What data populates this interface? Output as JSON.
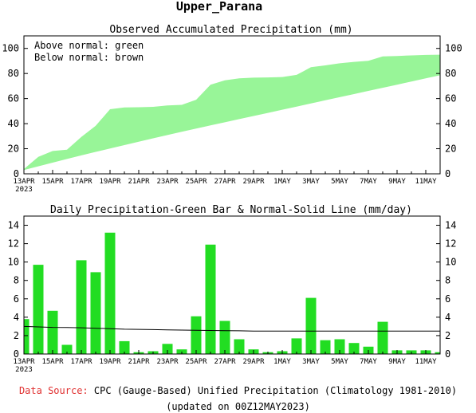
{
  "page_title": "Upper_Parana",
  "footer": {
    "source_label": "Data Source:",
    "source_text": "CPC (Gauge-Based) Unified Precipitation (Climatology 1981-2010)",
    "updated": "(updated on 00Z12MAY2023)"
  },
  "colors": {
    "green_fill": "#98f598",
    "bar_green": "#22dd22",
    "source_label": "#e03030"
  },
  "chart_data": [
    {
      "type": "area",
      "title": "Observed Accumulated Precipitation (mm)",
      "legend": [
        "Above normal: green",
        "Below normal: brown"
      ],
      "legend_position": "top-left",
      "x_tick_labels": [
        "13APR",
        "15APR",
        "17APR",
        "19APR",
        "21APR",
        "23APR",
        "25APR",
        "27APR",
        "29APR",
        "1MAY",
        "3MAY",
        "5MAY",
        "7MAY",
        "9MAY",
        "11MAY"
      ],
      "x_start_year_label": "2023",
      "days": [
        "13APR",
        "14APR",
        "15APR",
        "16APR",
        "17APR",
        "18APR",
        "19APR",
        "20APR",
        "21APR",
        "22APR",
        "23APR",
        "24APR",
        "25APR",
        "26APR",
        "27APR",
        "28APR",
        "29APR",
        "30APR",
        "1MAY",
        "2MAY",
        "3MAY",
        "4MAY",
        "5MAY",
        "6MAY",
        "7MAY",
        "8MAY",
        "9MAY",
        "10MAY",
        "11MAY",
        "12MAY"
      ],
      "observed": [
        3.8,
        13.5,
        18.2,
        19.2,
        29.4,
        38.3,
        51.5,
        52.9,
        53.1,
        53.4,
        54.5,
        55.0,
        59.1,
        71.0,
        74.6,
        76.2,
        76.7,
        76.9,
        77.2,
        78.9,
        85.0,
        86.5,
        88.1,
        89.3,
        90.1,
        93.6,
        94.0,
        94.4,
        94.8,
        95.0
      ],
      "normal": [
        3.0,
        6.0,
        8.9,
        11.8,
        14.7,
        17.5,
        20.2,
        22.9,
        25.6,
        28.3,
        30.9,
        33.5,
        36.1,
        38.6,
        41.1,
        43.6,
        46.1,
        48.6,
        51.1,
        53.6,
        56.1,
        58.6,
        61.1,
        63.6,
        66.1,
        68.6,
        71.1,
        73.6,
        76.1,
        78.6
      ],
      "ylim": [
        0,
        110
      ],
      "yticks": [
        0,
        20,
        40,
        60,
        80,
        100
      ],
      "grid": false
    },
    {
      "type": "bar",
      "title": "Daily Precipitation-Green Bar & Normal-Solid Line (mm/day)",
      "x_tick_labels": [
        "13APR",
        "15APR",
        "17APR",
        "19APR",
        "21APR",
        "23APR",
        "25APR",
        "27APR",
        "29APR",
        "1MAY",
        "3MAY",
        "5MAY",
        "7MAY",
        "9MAY",
        "11MAY"
      ],
      "x_start_year_label": "2023",
      "categories": [
        "13APR",
        "14APR",
        "15APR",
        "16APR",
        "17APR",
        "18APR",
        "19APR",
        "20APR",
        "21APR",
        "22APR",
        "23APR",
        "24APR",
        "25APR",
        "26APR",
        "27APR",
        "28APR",
        "29APR",
        "30APR",
        "1MAY",
        "2MAY",
        "3MAY",
        "4MAY",
        "5MAY",
        "6MAY",
        "7MAY",
        "8MAY",
        "9MAY",
        "10MAY",
        "11MAY",
        "12MAY"
      ],
      "values": [
        3.8,
        9.7,
        4.7,
        1.0,
        10.2,
        8.9,
        13.2,
        1.4,
        0.2,
        0.3,
        1.1,
        0.5,
        4.1,
        11.9,
        3.6,
        1.6,
        0.5,
        0.2,
        0.3,
        1.7,
        6.1,
        1.5,
        1.6,
        1.2,
        0.8,
        3.5,
        0.4,
        0.4,
        0.4,
        0.2
      ],
      "normal": [
        3.0,
        2.95,
        2.9,
        2.88,
        2.85,
        2.8,
        2.75,
        2.7,
        2.68,
        2.65,
        2.62,
        2.6,
        2.58,
        2.56,
        2.54,
        2.52,
        2.5,
        2.5,
        2.5,
        2.5,
        2.5,
        2.5,
        2.5,
        2.5,
        2.5,
        2.5,
        2.5,
        2.5,
        2.5,
        2.5
      ],
      "ylim": [
        0,
        15
      ],
      "yticks": [
        0,
        2,
        4,
        6,
        8,
        10,
        12,
        14
      ],
      "grid": false
    }
  ]
}
